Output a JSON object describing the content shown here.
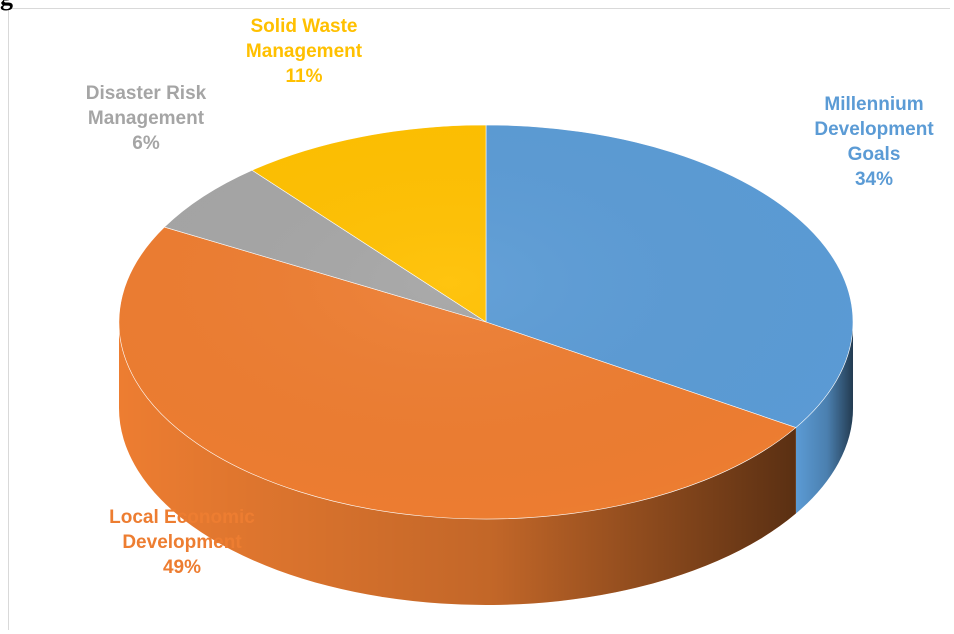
{
  "heading_fragment": "g",
  "chart_data": {
    "type": "pie",
    "title": "",
    "slices": [
      {
        "name": "Millennium Development Goals",
        "label_lines": [
          "Millennium",
          "Development",
          "Goals"
        ],
        "value": 34,
        "value_label": "34%",
        "color": "#5b9bd5"
      },
      {
        "name": "Local Economic Development",
        "label_lines": [
          "Local Economic",
          "Development"
        ],
        "value": 49,
        "value_label": "49%",
        "color": "#ed7d31"
      },
      {
        "name": "Disaster Risk Management",
        "label_lines": [
          "Disaster Risk",
          "Management"
        ],
        "value": 6,
        "value_label": "6%",
        "color": "#a5a5a5"
      },
      {
        "name": "Solid Waste Management",
        "label_lines": [
          "Solid Waste",
          "Management"
        ],
        "value": 11,
        "value_label": "11%",
        "color": "#ffc000"
      }
    ],
    "start_angle": "12 o'clock",
    "direction": "clockwise",
    "style": "3d",
    "legend": "none"
  }
}
